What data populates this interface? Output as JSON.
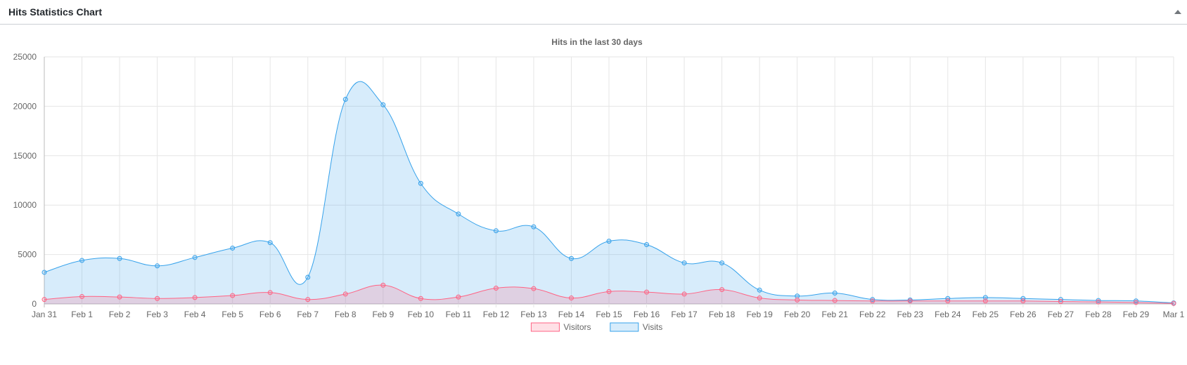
{
  "panel": {
    "title": "Hits Statistics Chart",
    "toggle_icon": "triangle-up-icon"
  },
  "chart_data": {
    "type": "line",
    "title": "Hits in the last 30 days",
    "categories": [
      "Jan 31",
      "Feb 1",
      "Feb 2",
      "Feb 3",
      "Feb 4",
      "Feb 5",
      "Feb 6",
      "Feb 7",
      "Feb 8",
      "Feb 9",
      "Feb 10",
      "Feb 11",
      "Feb 12",
      "Feb 13",
      "Feb 14",
      "Feb 15",
      "Feb 16",
      "Feb 17",
      "Feb 18",
      "Feb 19",
      "Feb 20",
      "Feb 21",
      "Feb 22",
      "Feb 23",
      "Feb 24",
      "Feb 25",
      "Feb 26",
      "Feb 27",
      "Feb 28",
      "Feb 29",
      "Mar 1"
    ],
    "ylim": [
      0,
      25000
    ],
    "yticks": [
      0,
      5000,
      10000,
      15000,
      20000,
      25000
    ],
    "grid": true,
    "legend": "bottom",
    "area": true,
    "series": [
      {
        "name": "Visitors",
        "color": "#ff6384",
        "fill": "rgba(255,99,132,0.2)",
        "values": [
          450,
          750,
          700,
          550,
          650,
          850,
          1150,
          450,
          1000,
          1900,
          550,
          700,
          1600,
          1550,
          600,
          1250,
          1200,
          1000,
          1450,
          600,
          400,
          350,
          300,
          300,
          300,
          300,
          300,
          250,
          200,
          150,
          50
        ]
      },
      {
        "name": "Visits",
        "color": "#36a2eb",
        "fill": "rgba(54,162,235,0.2)",
        "values": [
          3200,
          4400,
          4600,
          3850,
          4700,
          5650,
          6200,
          2700,
          20700,
          20150,
          12200,
          9100,
          7400,
          7800,
          4600,
          6350,
          6000,
          4150,
          4150,
          1400,
          800,
          1100,
          450,
          400,
          550,
          650,
          550,
          450,
          350,
          300,
          100
        ]
      }
    ]
  }
}
